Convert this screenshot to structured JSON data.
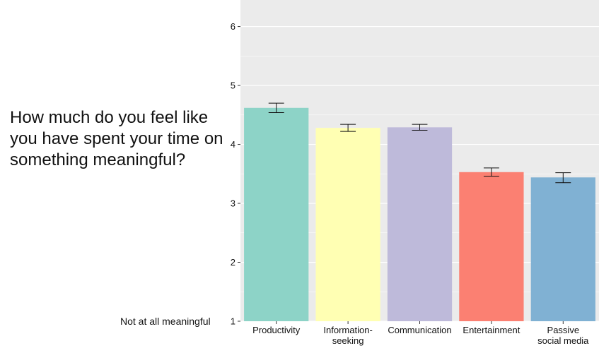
{
  "question": "How much do you feel like you have spent your time on something meaningful?",
  "bottom_label": "Not at all meaningful",
  "chart_data": {
    "type": "bar",
    "categories": [
      "Productivity",
      "Information-seeking",
      "Communication",
      "Entertainment",
      "Passive social media"
    ],
    "category_lines": [
      [
        "Productivity"
      ],
      [
        "Information-",
        "seeking"
      ],
      [
        "Communication"
      ],
      [
        "Entertainment"
      ],
      [
        "Passive",
        "social media"
      ]
    ],
    "values": [
      4.62,
      4.28,
      4.29,
      3.53,
      3.44
    ],
    "error_low": [
      4.54,
      4.22,
      4.24,
      3.46,
      3.35
    ],
    "error_high": [
      4.7,
      4.34,
      4.34,
      3.6,
      3.52
    ],
    "colors": [
      "#8dd3c7",
      "#ffffb3",
      "#bebada",
      "#fb8072",
      "#80b1d3"
    ],
    "yticks": [
      1,
      2,
      3,
      4,
      5,
      6
    ],
    "ylim": [
      1,
      6.45
    ],
    "panel_background": "#ebebeb",
    "grid": true,
    "title": "",
    "xlabel": "",
    "ylabel": ""
  }
}
